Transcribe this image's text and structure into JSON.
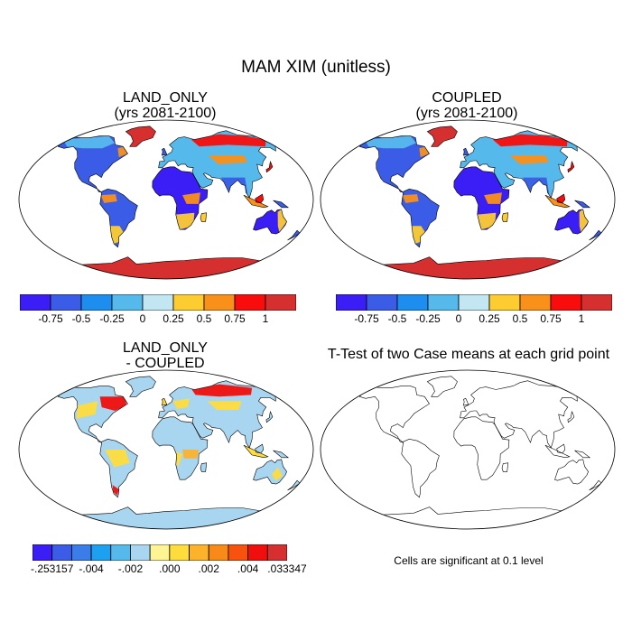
{
  "title": "MAM XIM (unitless)",
  "colors": {
    "ocean": "#ffffff",
    "outline": "#000000",
    "antarctica_top": "#d62f2f",
    "antarctica_diff": "#a8d5ef",
    "greenland_top": "#d62f2f"
  },
  "panels": {
    "land_only": {
      "title_line1": "LAND_ONLY",
      "title_line2": "(yrs 2081-2100)"
    },
    "coupled": {
      "title_line1": "COUPLED",
      "title_line2": "(yrs 2081-2100)"
    },
    "difference": {
      "title_line1": "LAND_ONLY",
      "title_line2": "- COUPLED"
    },
    "ttest": {
      "title": "T-Test of two Case means at each grid point",
      "note": "Cells are significant at 0.1 level"
    }
  },
  "colorbar_top": {
    "colors": [
      "#3a1ef5",
      "#3a5ce6",
      "#1d8ef0",
      "#56b9ec",
      "#c2e6f2",
      "#fdcc30",
      "#f99019",
      "#f80d0c",
      "#d62f2f"
    ],
    "labels": [
      "-0.75",
      "-0.5",
      "-0.25",
      "0",
      "0.25",
      "0.5",
      "0.75",
      "1"
    ]
  },
  "colorbar_diff": {
    "colors": [
      "#3a1ef5",
      "#3a5ce6",
      "#3a7ce8",
      "#1da0f0",
      "#56b9ec",
      "#a8d5ef",
      "#fef494",
      "#fddc3c",
      "#fcb22a",
      "#f88a18",
      "#f8520f",
      "#f00f0c",
      "#d62f2f"
    ],
    "labels": [
      "-.253157",
      "-.004",
      "-.002",
      ".000",
      ".002",
      ".004",
      ".033347"
    ]
  },
  "map_colors": {
    "top": {
      "na": "#3a5ce6",
      "na_north": "#56b9ec",
      "sa": "#3a5ce6",
      "sa_south": "#fdcc30",
      "africa": "#3a1ef5",
      "africa_south": "#fdcc30",
      "eurasia": "#56b9ec",
      "asia_south": "#3a5ce6",
      "australia": "#3a1ef5",
      "australia_edge": "#fdcc30",
      "hot": "#f80d0c",
      "warm": "#f99019"
    },
    "diff": {
      "base": "#a8d5ef",
      "warm": "#fddc3c",
      "hot": "#f00f0c",
      "mid": "#fcb22a"
    }
  }
}
